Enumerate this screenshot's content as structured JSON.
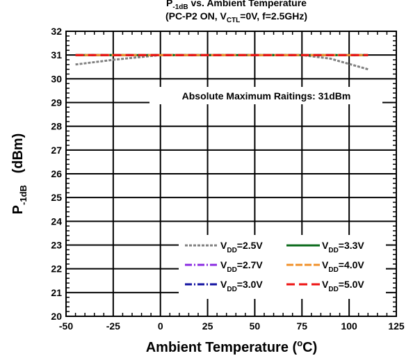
{
  "chart_data": {
    "type": "line",
    "title_lines": [
      {
        "main": "P",
        "sub": "-1dB",
        "rest": " vs. Ambient Temperature"
      },
      {
        "parts": [
          {
            "t": "(PC-P2 ON, V"
          },
          {
            "t": "CTL",
            "sub": true
          },
          {
            "t": "=0V, f=2.5GHz)"
          }
        ]
      }
    ],
    "xlabel": {
      "main": "Ambient Temperature  (",
      "sup": "o",
      "rest": "C)"
    },
    "ylabel": {
      "main": "P",
      "sub": "-1dB",
      "rest": "   (dBm)"
    },
    "xlim": [
      -50,
      125
    ],
    "ylim": [
      20,
      32
    ],
    "xticks": [
      -50,
      -25,
      0,
      25,
      50,
      75,
      100,
      125
    ],
    "yticks": [
      20,
      21,
      22,
      23,
      24,
      25,
      26,
      27,
      28,
      29,
      30,
      31,
      32
    ],
    "grid": true,
    "annotation": "Absolute Maximum Raitings: 31dBm",
    "legend_position": "bottom-right",
    "series": [
      {
        "name": "VDD=2.5V",
        "name_main": "V",
        "name_sub": "DD",
        "name_rest": "=2.5V",
        "color": "#808080",
        "dash": "4,2",
        "x": [
          -45,
          -25,
          0,
          25,
          50,
          75,
          90,
          110
        ],
        "y": [
          30.6,
          30.8,
          31.0,
          31.0,
          31.0,
          31.0,
          30.85,
          30.4
        ]
      },
      {
        "name": "VDD=2.7V",
        "name_main": "V",
        "name_sub": "DD",
        "name_rest": "=2.7V",
        "color": "#8a2be2",
        "dash": "10,3,2,3",
        "x": [
          -45,
          -25,
          0,
          25,
          50,
          75,
          100,
          110
        ],
        "y": [
          31.0,
          31.0,
          31.0,
          31.0,
          31.0,
          31.0,
          31.0,
          31.0
        ]
      },
      {
        "name": "VDD=3.0V",
        "name_main": "V",
        "name_sub": "DD",
        "name_rest": "=3.0V",
        "color": "#1010a0",
        "dash": "10,3,2,3",
        "x": [
          -45,
          -25,
          0,
          25,
          50,
          75,
          100,
          110
        ],
        "y": [
          31.0,
          31.0,
          31.0,
          31.0,
          31.0,
          31.0,
          31.0,
          31.0
        ]
      },
      {
        "name": "VDD=3.3V",
        "name_main": "V",
        "name_sub": "DD",
        "name_rest": "=3.3V",
        "color": "#0a6a1a",
        "dash": "",
        "x": [
          -45,
          -25,
          0,
          25,
          50,
          75,
          100,
          110
        ],
        "y": [
          31.0,
          31.0,
          31.0,
          31.0,
          31.0,
          31.0,
          31.0,
          31.0
        ]
      },
      {
        "name": "VDD=4.0V",
        "name_main": "V",
        "name_sub": "DD",
        "name_rest": "=4.0V",
        "color": "#f0902a",
        "dash": "10,3",
        "x": [
          -45,
          -25,
          0,
          25,
          50,
          75,
          100,
          110
        ],
        "y": [
          31.0,
          31.0,
          31.0,
          31.0,
          31.0,
          31.0,
          31.0,
          31.0
        ]
      },
      {
        "name": "VDD=5.0V",
        "name_main": "V",
        "name_sub": "DD",
        "name_rest": "=5.0V",
        "color": "#ee1111",
        "dash": "12,6",
        "x": [
          -45,
          -25,
          0,
          25,
          50,
          75,
          100,
          110
        ],
        "y": [
          31.0,
          31.0,
          31.0,
          31.0,
          31.0,
          31.0,
          31.0,
          31.0
        ]
      }
    ]
  }
}
